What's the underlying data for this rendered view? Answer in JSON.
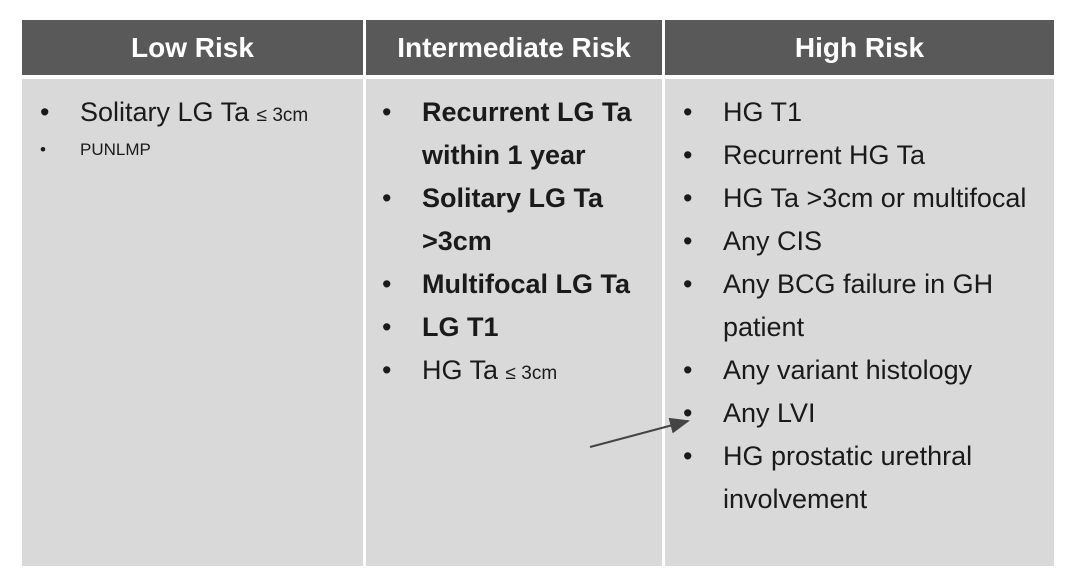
{
  "table": {
    "headers": [
      "Low Risk",
      "Intermediate Risk",
      "High Risk"
    ],
    "columns": [
      {
        "bold": false,
        "items": [
          {
            "text": "Solitary LG Ta",
            "note": "≤ 3cm"
          },
          {
            "text": "PUNLMP",
            "size": "small"
          }
        ]
      },
      {
        "bold": true,
        "items": [
          {
            "text": "Recurrent LG Ta within 1 year"
          },
          {
            "text": "Solitary LG Ta >3cm"
          },
          {
            "text": "Multifocal LG Ta"
          },
          {
            "text": "LG T1"
          },
          {
            "text": "HG Ta",
            "note": "≤ 3cm",
            "bold": false
          }
        ]
      },
      {
        "bold": false,
        "items": [
          {
            "text": "HG T1"
          },
          {
            "text": "Recurrent HG Ta"
          },
          {
            "text": "HG Ta >3cm or multifocal"
          },
          {
            "text": "Any CIS"
          },
          {
            "text": "Any BCG failure in GH patient"
          },
          {
            "text": "Any variant histology"
          },
          {
            "text": "Any LVI"
          },
          {
            "text": "HG prostatic urethral involvement"
          }
        ]
      }
    ]
  }
}
